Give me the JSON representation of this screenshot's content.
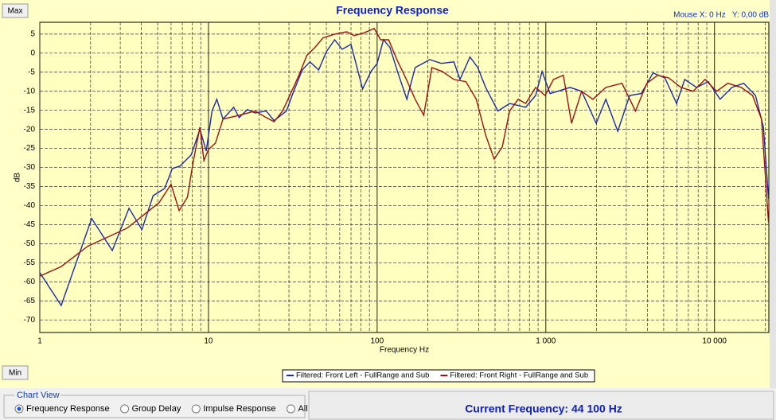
{
  "chart_data": {
    "type": "line",
    "title": "Frequency Response",
    "x_label": "Frequency Hz",
    "y_label": "dB",
    "xscale": "log",
    "xlim": [
      1,
      21000
    ],
    "ylim": [
      -73.3,
      8.1
    ],
    "xticks": [
      1,
      10,
      100,
      {
        "value": 1000,
        "label": "1 000"
      },
      {
        "value": 10000,
        "label": "10 000"
      }
    ],
    "xminorticks": [
      2,
      3,
      4,
      5,
      6,
      7,
      8,
      9,
      20,
      30,
      40,
      50,
      60,
      70,
      80,
      90,
      200,
      300,
      400,
      500,
      600,
      700,
      800,
      900,
      2000,
      3000,
      4000,
      5000,
      6000,
      7000,
      8000,
      9000,
      20000
    ],
    "yticks": [
      5,
      0,
      -5,
      -10,
      -15,
      -20,
      -25,
      -30,
      -35,
      -40,
      -45,
      -50,
      -55,
      -60,
      -65,
      -70
    ],
    "grid": true,
    "series": [
      {
        "name": "Filtered: Front Left - FullRange and Sub",
        "color": "#1a2aa8",
        "x": [
          1,
          1.34,
          2.03,
          2.69,
          3.38,
          4.03,
          4.7,
          5.5,
          6.1,
          6.8,
          7.9,
          8.9,
          9.7,
          10.5,
          11.2,
          12.2,
          14.1,
          15.2,
          17,
          18.9,
          22,
          24.5,
          29,
          32,
          36,
          40,
          45,
          50,
          56,
          62,
          70,
          82,
          92,
          100,
          109,
          119,
          132,
          150,
          168,
          205,
          240,
          285,
          310,
          355,
          395,
          440,
          520,
          610,
          760,
          870,
          950,
          1060,
          1180,
          1390,
          1630,
          1990,
          2270,
          2670,
          3140,
          3680,
          4320,
          5080,
          5960,
          6660,
          7830,
          9190,
          10800,
          12700,
          14900,
          17500,
          19500,
          20900
        ],
        "values": [
          -57.6,
          -66.2,
          -43.4,
          -51.8,
          -40.7,
          -46.3,
          -37.4,
          -35.5,
          -30.3,
          -29.6,
          -26.7,
          -20,
          -25.7,
          -15.2,
          -12.1,
          -17.3,
          -14.2,
          -16.9,
          -14.8,
          -15.7,
          -15.2,
          -17.7,
          -15.2,
          -10,
          -4.4,
          -2.3,
          -4.4,
          0.4,
          3.5,
          1,
          2.3,
          -9.4,
          -4.8,
          -2.7,
          3.5,
          1.5,
          -4.8,
          -12.1,
          -3.8,
          -1.7,
          -2.7,
          -2.3,
          -6.9,
          -1,
          -3.8,
          -9,
          -15.2,
          -13.2,
          -14.2,
          -11.1,
          -4.8,
          -10.6,
          -10,
          -9,
          -10,
          -18.4,
          -12.1,
          -20.5,
          -11.1,
          -10.6,
          -5.2,
          -6.5,
          -13.2,
          -6.9,
          -9,
          -7.5,
          -12.1,
          -9,
          -7.9,
          -11.1,
          -19.4,
          -38.2
        ]
      },
      {
        "name": "Filtered: Front Right - FullRange and Sub",
        "color": "#a01010",
        "x": [
          1,
          1.34,
          1.92,
          3.3,
          5.1,
          6,
          6.7,
          7.5,
          8.1,
          8.9,
          9.4,
          10,
          11,
          12.2,
          13.3,
          15.2,
          18.9,
          22,
          24.5,
          27.5,
          30.7,
          34.4,
          38.3,
          42.8,
          47.8,
          56,
          66,
          73,
          82,
          92,
          96,
          105,
          117,
          131,
          149,
          168,
          189,
          211,
          243,
          285,
          336,
          387,
          440,
          494,
          552,
          610,
          685,
          760,
          870,
          990,
          1110,
          1270,
          1420,
          1630,
          1900,
          2270,
          2830,
          3400,
          3970,
          4610,
          5360,
          6320,
          7470,
          8800,
          10300,
          12000,
          14400,
          16800,
          19000,
          20900
        ],
        "values": [
          -58.5,
          -56,
          -50.7,
          -45.9,
          -39.2,
          -34.4,
          -41.3,
          -37.8,
          -28.8,
          -19.4,
          -28.2,
          -25.3,
          -23.6,
          -17.3,
          -16.9,
          -16.3,
          -15.2,
          -16.9,
          -18,
          -15.2,
          -10.6,
          -5.8,
          -0.6,
          1.5,
          4,
          5,
          5.6,
          4.6,
          5.2,
          6.1,
          6.5,
          3.5,
          3.5,
          -1.7,
          -6.9,
          -12.1,
          -16.3,
          -3.8,
          -4.8,
          -6.9,
          -7.5,
          -12.1,
          -21.5,
          -27.8,
          -24.6,
          -15.2,
          -12.1,
          -13.2,
          -9,
          -11.1,
          -6.9,
          -5.8,
          -18.4,
          -10,
          -12.1,
          -9,
          -7.9,
          -15.2,
          -7.9,
          -5.8,
          -6.5,
          -9,
          -10,
          -6.9,
          -10,
          -7.9,
          -9,
          -11.1,
          -17.3,
          -44.5
        ]
      }
    ]
  },
  "ui": {
    "max_button": "Max",
    "min_button": "Min",
    "mouse_readout": "Mouse X: 0 Hz   Y: 0,00 dB",
    "chart_view": {
      "title": "Chart View",
      "options": [
        "Frequency Response",
        "Group Delay",
        "Impulse Response",
        "All"
      ],
      "selected": 0
    },
    "current_frequency": "Current Frequency: 44 100 Hz"
  }
}
